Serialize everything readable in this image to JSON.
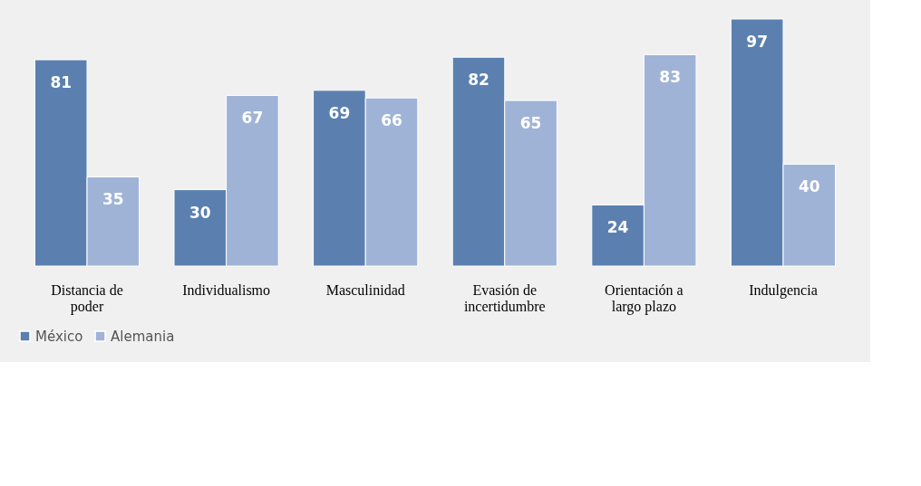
{
  "chart_data": {
    "type": "bar",
    "categories": [
      "Distancia de\npoder",
      "Individualismo",
      "Masculinidad",
      "Evasión de\nincertidumbre",
      "Orientación a\nlargo plazo",
      "Indulgencia"
    ],
    "series": [
      {
        "name": "México",
        "color": "#5b80b0",
        "values": [
          81,
          30,
          69,
          82,
          24,
          97
        ]
      },
      {
        "name": "Alemania",
        "color": "#9fb3d6",
        "values": [
          35,
          67,
          66,
          65,
          83,
          40
        ]
      }
    ],
    "data_labels": true,
    "legend": "bottom",
    "grid": false,
    "tick_labels": "x"
  }
}
